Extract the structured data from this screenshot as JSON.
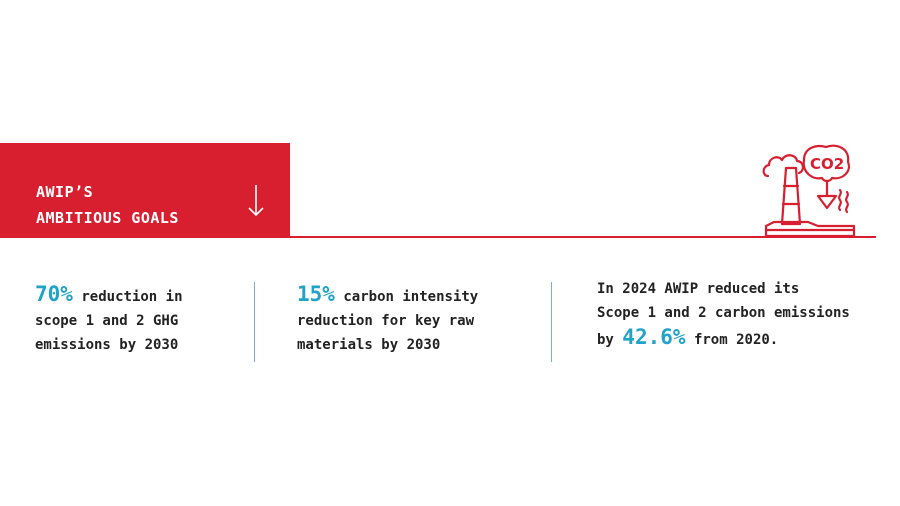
{
  "banner": {
    "title_line1": "AWIP’S",
    "title_line2": "AMBITIOUS GOALS",
    "arrow_icon": "arrow-down-icon"
  },
  "icon": {
    "name": "co2-factory-icon",
    "label": "CO2"
  },
  "colors": {
    "accent_red": "#d71f30",
    "accent_blue": "#1fa3c8",
    "text": "#222222"
  },
  "goals": [
    {
      "highlight": "70%",
      "line1": " reduction in",
      "line2": "scope 1 and 2 GHG",
      "line3": "emissions by 2030"
    },
    {
      "highlight": "15%",
      "line1": " carbon intensity",
      "line2": "reduction for key raw",
      "line3": "materials by 2030"
    }
  ],
  "achievement": {
    "line1": "In 2024 AWIP reduced its",
    "line2": "Scope 1 and 2 carbon emissions",
    "line3_prefix": "by ",
    "highlight": "42.6%",
    "line3_suffix": " from 2020."
  }
}
